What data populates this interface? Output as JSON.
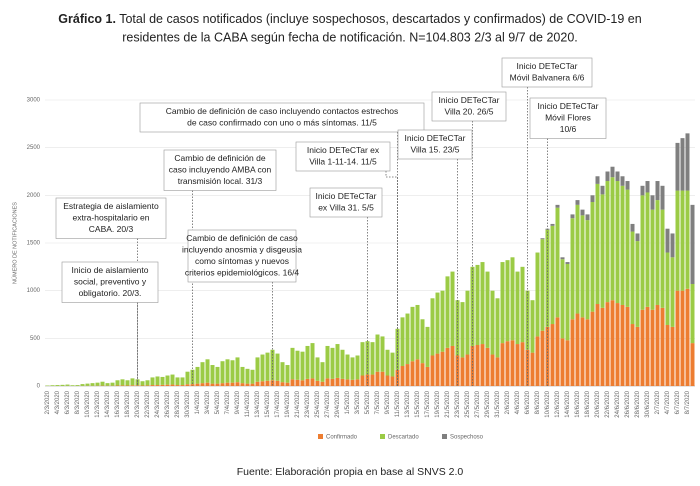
{
  "chart_data": {
    "type": "stacked_bar",
    "title_prefix": "Gráfico 1.",
    "title": [
      "Total de casos notificados (incluye sospechosos, descartados y confirmados) de COVID-19 en",
      "residentes de la CABA según fecha de notificación. N=104.803 2/3 al 9/7 de 2020."
    ],
    "y_label": "NÚMERO DE NOTIFICACIONES",
    "source": "Fuente: Elaboración propia en base al SNVS 2.0",
    "ylim": [
      0,
      3000
    ],
    "yticks": [
      0,
      500,
      1000,
      1500,
      2000,
      2500,
      3000
    ],
    "grid": true,
    "categories": [
      "2/3/2020",
      null,
      "4/3/2020",
      null,
      "6/3/2020",
      null,
      "8/3/2020",
      null,
      "10/3/2020",
      null,
      "12/3/2020",
      null,
      "14/3/2020",
      null,
      "16/3/2020",
      null,
      "18/3/2020",
      null,
      "20/3/2020",
      null,
      "22/3/2020",
      null,
      "24/3/2020",
      null,
      "26/3/2020",
      null,
      "28/3/2020",
      null,
      "30/3/2020",
      null,
      "1/4/2020",
      null,
      "3/4/2020",
      null,
      "5/4/2020",
      null,
      "7/4/2020",
      null,
      "9/4/2020",
      null,
      "11/4/2020",
      null,
      "13/4/2020",
      null,
      "15/4/2020",
      null,
      "17/4/2020",
      null,
      "19/4/2020",
      null,
      "21/4/2020",
      null,
      "23/4/2020",
      null,
      "25/4/2020",
      null,
      "27/4/2020",
      null,
      "29/4/2020",
      null,
      "1/5/2020",
      null,
      "3/5/2020",
      null,
      "5/5/2020",
      null,
      "7/5/2020",
      null,
      "9/5/2020",
      null,
      "11/5/2020",
      null,
      "13/5/2020",
      null,
      "15/5/2020",
      null,
      "17/5/2020",
      null,
      "19/5/2020",
      null,
      "21/5/2020",
      null,
      "23/5/2020",
      null,
      "25/5/2020",
      null,
      "27/5/2020",
      null,
      "29/5/2020",
      null,
      "31/5/2020",
      null,
      "2/6/2020",
      null,
      "4/6/2020",
      null,
      "6/6/2020",
      null,
      "8/6/2020",
      null,
      "10/6/2020",
      null,
      "12/6/2020",
      null,
      "14/6/2020",
      null,
      "16/6/2020",
      null,
      "18/6/2020",
      null,
      "20/6/2020",
      null,
      "22/6/2020",
      null,
      "24/6/2020",
      null,
      "26/6/2020",
      null,
      "28/6/2020",
      null,
      "30/6/2020",
      null,
      "2/7/2020",
      null,
      "4/7/2020",
      null,
      "6/7/2020",
      null,
      "8/7/2020",
      null
    ],
    "series": [
      {
        "name": "Confirmado",
        "color": "#ED7D31",
        "values": [
          0,
          0,
          0,
          0,
          1,
          0,
          1,
          1,
          2,
          2,
          3,
          4,
          3,
          3,
          5,
          6,
          5,
          8,
          8,
          5,
          6,
          10,
          10,
          12,
          14,
          15,
          10,
          10,
          18,
          20,
          25,
          30,
          35,
          25,
          25,
          30,
          35,
          35,
          40,
          30,
          25,
          25,
          45,
          50,
          55,
          60,
          55,
          40,
          35,
          70,
          65,
          60,
          75,
          80,
          55,
          45,
          80,
          75,
          85,
          75,
          70,
          65,
          70,
          110,
          120,
          120,
          150,
          150,
          110,
          100,
          170,
          210,
          230,
          260,
          280,
          240,
          200,
          320,
          340,
          360,
          400,
          420,
          320,
          300,
          330,
          420,
          430,
          440,
          400,
          330,
          300,
          450,
          470,
          480,
          440,
          460,
          380,
          350,
          520,
          580,
          620,
          650,
          720,
          500,
          480,
          700,
          760,
          720,
          700,
          780,
          860,
          820,
          880,
          900,
          870,
          850,
          830,
          650,
          620,
          800,
          830,
          800,
          850,
          820,
          640,
          620,
          1000,
          1000,
          1020,
          450
        ]
      },
      {
        "name": "Descartado",
        "color": "#9BCB45",
        "values": [
          5,
          8,
          10,
          12,
          14,
          8,
          9,
          19,
          23,
          28,
          32,
          41,
          27,
          32,
          55,
          64,
          55,
          72,
          62,
          45,
          54,
          80,
          90,
          83,
          96,
          105,
          80,
          80,
          132,
          150,
          175,
          220,
          245,
          195,
          175,
          230,
          245,
          235,
          260,
          170,
          155,
          145,
          255,
          280,
          295,
          320,
          285,
          210,
          185,
          330,
          305,
          300,
          345,
          370,
          245,
          205,
          340,
          325,
          355,
          305,
          260,
          235,
          250,
          350,
          350,
          340,
          390,
          370,
          270,
          250,
          430,
          510,
          530,
          570,
          570,
          460,
          420,
          600,
          640,
          640,
          750,
          780,
          580,
          580,
          670,
          830,
          840,
          860,
          800,
          670,
          620,
          850,
          850,
          870,
          760,
          790,
          620,
          550,
          880,
          960,
          1020,
          1030,
          1150,
          830,
          800,
          1060,
          1140,
          1070,
          1040,
          1150,
          1260,
          1190,
          1270,
          1290,
          1280,
          1250,
          1230,
          970,
          900,
          1200,
          1200,
          1050,
          1100,
          1030,
          760,
          730,
          1050,
          1050,
          1030,
          620
        ]
      },
      {
        "name": "Sospechoso",
        "color": "#7F7F7F",
        "values": [
          0,
          0,
          0,
          0,
          0,
          0,
          0,
          0,
          0,
          0,
          0,
          0,
          0,
          0,
          0,
          0,
          0,
          0,
          0,
          0,
          0,
          0,
          0,
          0,
          0,
          0,
          0,
          0,
          0,
          0,
          0,
          0,
          0,
          0,
          0,
          0,
          0,
          0,
          0,
          0,
          0,
          0,
          0,
          0,
          0,
          0,
          0,
          0,
          0,
          0,
          0,
          0,
          0,
          0,
          0,
          0,
          0,
          0,
          0,
          0,
          0,
          0,
          0,
          0,
          0,
          0,
          0,
          0,
          0,
          0,
          0,
          0,
          0,
          0,
          0,
          0,
          0,
          0,
          0,
          0,
          0,
          0,
          0,
          0,
          0,
          0,
          0,
          0,
          0,
          0,
          0,
          0,
          0,
          0,
          0,
          0,
          0,
          0,
          0,
          10,
          10,
          20,
          30,
          20,
          20,
          40,
          50,
          60,
          60,
          70,
          80,
          90,
          100,
          110,
          100,
          100,
          90,
          80,
          80,
          100,
          120,
          150,
          200,
          250,
          250,
          250,
          500,
          550,
          600,
          830
        ]
      }
    ],
    "annotations": [
      {
        "text": [
          "Inicio de aislamiento",
          "social, preventivo y",
          "obligatorio. 20/3."
        ]
      },
      {
        "text": [
          "Estrategia de aislamiento",
          "extra-hospitalario en",
          "CABA. 20/3"
        ]
      },
      {
        "text": [
          "Cambio de definición de",
          "caso incluyendo AMBA con",
          "transmisión local. 31/3"
        ]
      },
      {
        "text": [
          "Cambio de definición de caso incluyendo contactos estrechos",
          "de caso confirmado con uno o más síntomas. 11/5"
        ]
      },
      {
        "text": [
          "Cambio de definición de caso",
          "incluyendo anosmia y disgeusia",
          "como síntomas y nuevos",
          "criterios epidemiológicos. 16/4"
        ]
      },
      {
        "text": [
          "Inicio DETeCTar ex",
          "Villa 1-11-14. 11/5"
        ]
      },
      {
        "text": [
          "Inicio DETeCTar",
          "ex Villa 31. 5/5"
        ]
      },
      {
        "text": [
          "Inicio DETeCTar",
          "Villa 20. 26/5"
        ]
      },
      {
        "text": [
          "Inicio DETeCTar",
          "Villa 15. 23/5"
        ]
      },
      {
        "text": [
          "Inicio DETeCTar",
          "Móvil Balvanera 6/6"
        ]
      },
      {
        "text": [
          "Inicio DETeCTar",
          "Móvil Flores",
          "10/6"
        ]
      }
    ]
  }
}
